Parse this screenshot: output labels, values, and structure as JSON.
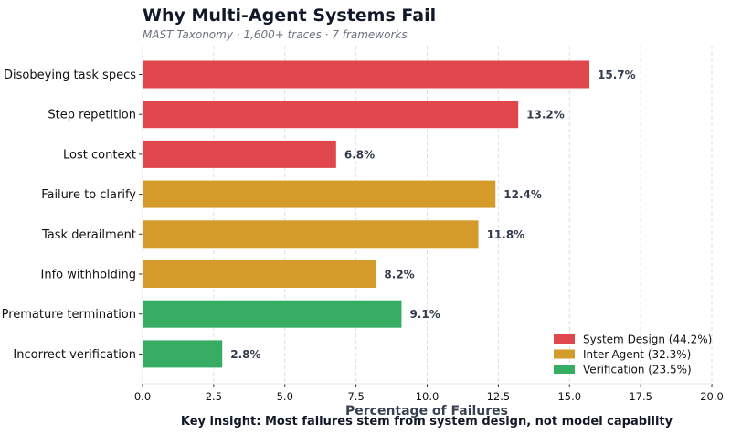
{
  "chart_data": {
    "type": "bar",
    "orientation": "horizontal",
    "title": "Why Multi-Agent Systems Fail",
    "subtitle": "MAST Taxonomy · 1,600+ traces · 7 frameworks",
    "xlabel": "Percentage of Failures",
    "ylabel": "",
    "xlim": [
      0,
      20
    ],
    "xticks": [
      "0.0",
      "2.5",
      "5.0",
      "7.5",
      "10.0",
      "12.5",
      "15.0",
      "17.5",
      "20.0"
    ],
    "grid": "vertical dashed",
    "legend_position": "bottom-right",
    "categories": [
      "Disobeying task specs",
      "Step repetition",
      "Lost context",
      "Failure to clarify",
      "Task derailment",
      "Info withholding",
      "Premature termination",
      "Incorrect verification"
    ],
    "values": [
      15.7,
      13.2,
      6.8,
      12.4,
      11.8,
      8.2,
      9.1,
      2.8
    ],
    "data_labels": [
      "15.7%",
      "13.2%",
      "6.8%",
      "12.4%",
      "11.8%",
      "8.2%",
      "9.1%",
      "2.8%"
    ],
    "groups": [
      0,
      0,
      0,
      1,
      1,
      1,
      2,
      2
    ],
    "legend": [
      {
        "label": "System Design (44.2%)",
        "color": "#e0474c"
      },
      {
        "label": "Inter-Agent (32.3%)",
        "color": "#d49b2a"
      },
      {
        "label": "Verification (23.5%)",
        "color": "#37ad63"
      }
    ],
    "footnote": "Key insight: Most failures stem from system design, not model capability"
  }
}
